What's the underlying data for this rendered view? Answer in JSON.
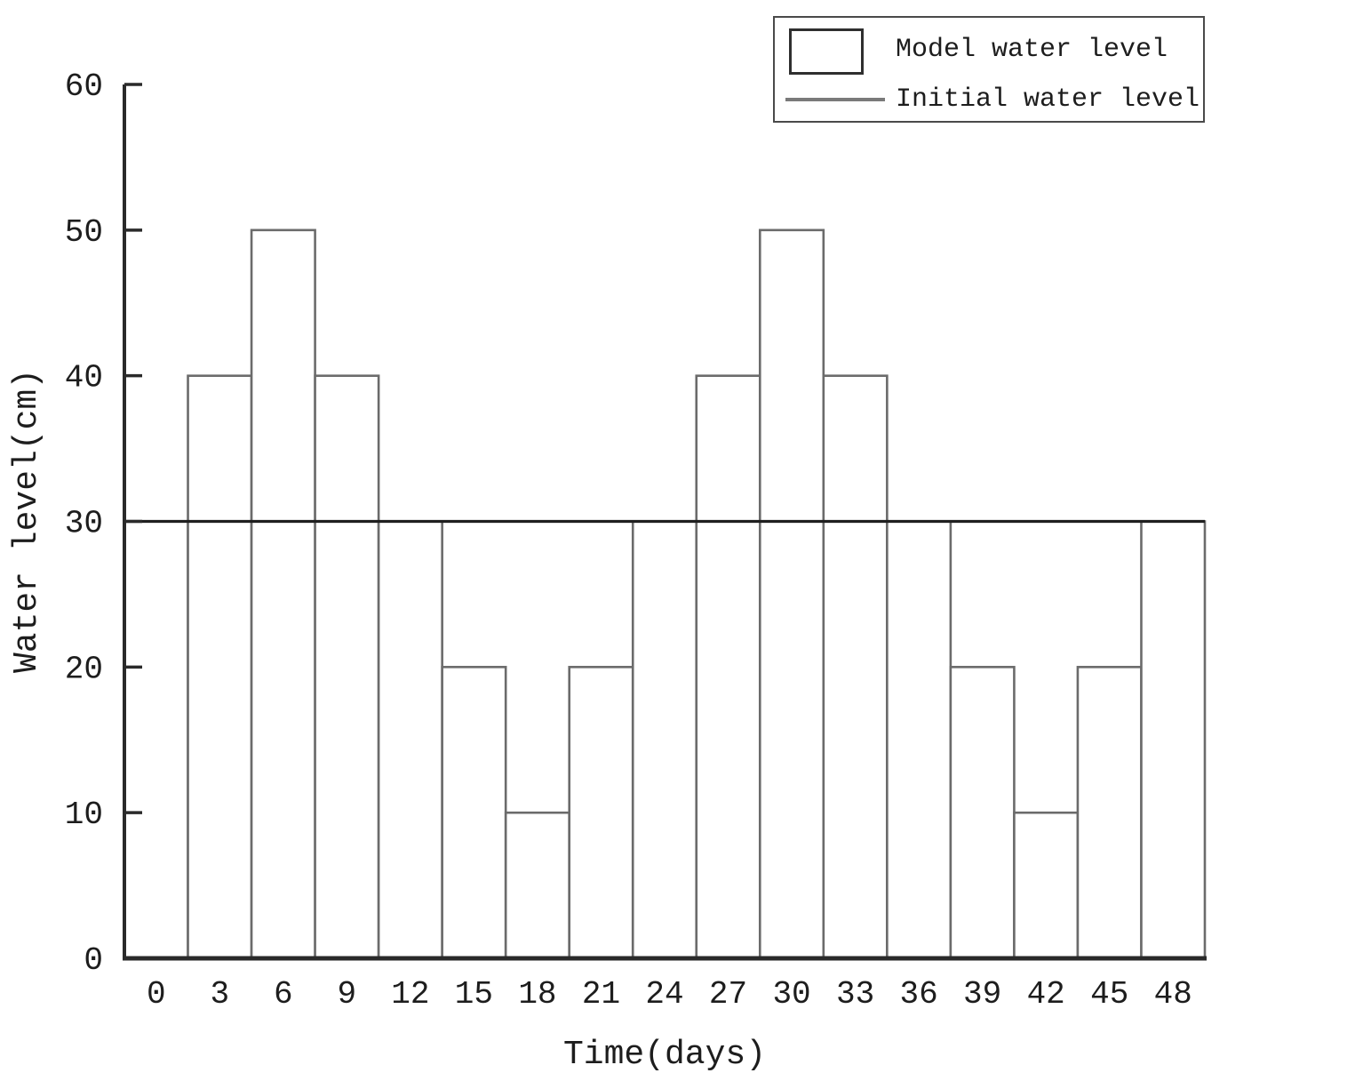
{
  "figure": {
    "xlabel": "Time(days)",
    "ylabel": "Water level(cm)"
  },
  "legend": {
    "items": [
      {
        "label": "Model water level",
        "swatch": "rect-outline-icon"
      },
      {
        "label": "Initial water level",
        "swatch": "line-icon"
      }
    ]
  },
  "chart_data": {
    "type": "bar",
    "title": "",
    "xlabel": "Time(days)",
    "ylabel": "Water level(cm)",
    "categories": [
      0,
      3,
      6,
      9,
      12,
      15,
      18,
      21,
      24,
      27,
      30,
      33,
      36,
      39,
      42,
      45,
      48
    ],
    "series": [
      {
        "name": "Model water level",
        "type": "bar",
        "values": [
          30,
          40,
          50,
          40,
          30,
          20,
          10,
          20,
          30,
          40,
          50,
          40,
          30,
          20,
          10,
          20,
          30
        ]
      },
      {
        "name": "Initial water level",
        "type": "hline",
        "value": 30
      }
    ],
    "ylim": [
      0,
      60
    ],
    "yticks": [
      0,
      10,
      20,
      30,
      40,
      50,
      60
    ],
    "bar_width_days": 3,
    "legend_position": "top-right",
    "grid": false
  },
  "colors": {
    "background": "#ffffff",
    "axis": "#2a2a2a",
    "bar_stroke": "#6b6b6b",
    "bar_fill": "#ffffff",
    "initial_line": "#1f1f1f",
    "legend_border": "#4a4a4a",
    "legend_line_swatch": "#7a7a7a",
    "text": "#1d1d1d"
  }
}
